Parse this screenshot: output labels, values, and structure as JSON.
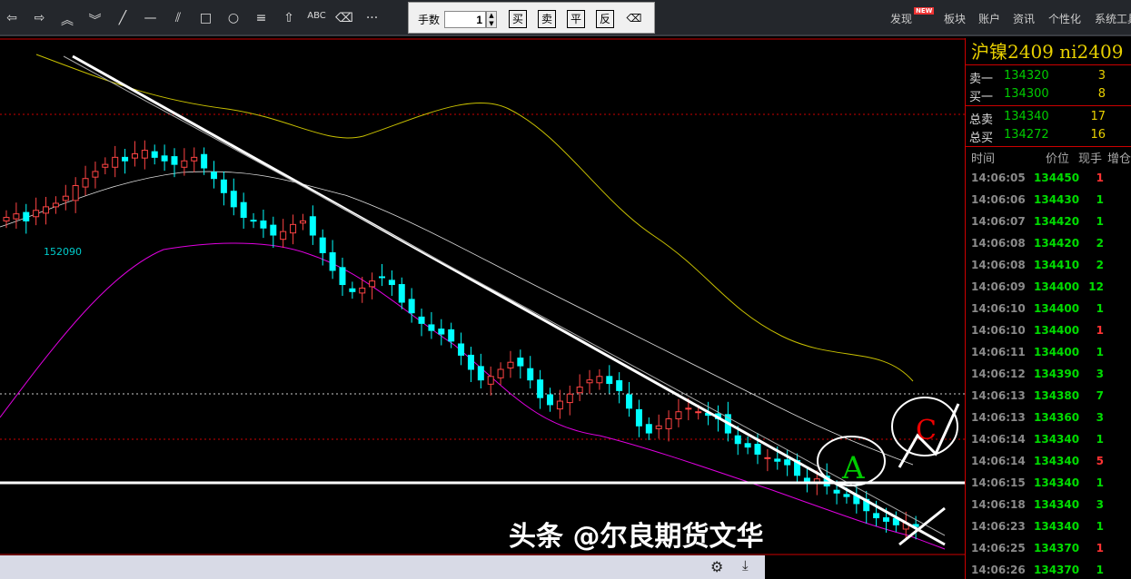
{
  "toolbar": {
    "tools": [
      {
        "icon": "arrow-left-icon",
        "glyph": "⇦"
      },
      {
        "icon": "arrow-right-icon",
        "glyph": "⇨"
      },
      {
        "icon": "double-up-icon",
        "glyph": "︽"
      },
      {
        "icon": "double-down-icon",
        "glyph": "︾"
      },
      {
        "icon": "line-icon",
        "glyph": "╱"
      },
      {
        "icon": "horizontal-line-icon",
        "glyph": "—"
      },
      {
        "icon": "parallel-line-icon",
        "glyph": "⫽"
      },
      {
        "icon": "rectangle-icon",
        "glyph": "□"
      },
      {
        "icon": "ellipse-icon",
        "glyph": "○"
      },
      {
        "icon": "fibonacci-icon",
        "glyph": "≡"
      },
      {
        "icon": "arrow-up-icon",
        "glyph": "⇧"
      },
      {
        "icon": "text-icon",
        "glyph": "ABC"
      },
      {
        "icon": "eraser-icon",
        "glyph": "⌫"
      },
      {
        "icon": "more-icon",
        "glyph": "···"
      }
    ]
  },
  "trade": {
    "qty_label": "手数",
    "qty_value": "1",
    "buy": "买",
    "sell": "卖",
    "close": "平",
    "reverse": "反"
  },
  "menu": {
    "items": [
      "发现",
      "板块",
      "账户",
      "资讯",
      "个性化",
      "系统工具"
    ],
    "new_badge": "NEW"
  },
  "quote": {
    "title": "沪镍2409  ni2409",
    "book": [
      {
        "label": "卖一",
        "price": "134320",
        "vol": "3"
      },
      {
        "label": "买一",
        "price": "134300",
        "vol": "8"
      }
    ],
    "totals": [
      {
        "label": "总卖",
        "price": "134340",
        "vol": "17"
      },
      {
        "label": "总买",
        "price": "134272",
        "vol": "16"
      }
    ],
    "headers": [
      "时间",
      "价位",
      "现手",
      "增仓"
    ],
    "ticks": [
      [
        "14:06:05",
        "134450",
        "1",
        "red"
      ],
      [
        "14:06:06",
        "134430",
        "1",
        "green"
      ],
      [
        "14:06:07",
        "134420",
        "1",
        "green"
      ],
      [
        "14:06:08",
        "134420",
        "2",
        "green"
      ],
      [
        "14:06:08",
        "134410",
        "2",
        "green"
      ],
      [
        "14:06:09",
        "134400",
        "12",
        "green"
      ],
      [
        "14:06:10",
        "134400",
        "1",
        "green"
      ],
      [
        "14:06:10",
        "134400",
        "1",
        "red"
      ],
      [
        "14:06:11",
        "134400",
        "1",
        "green"
      ],
      [
        "14:06:12",
        "134390",
        "3",
        "green"
      ],
      [
        "14:06:13",
        "134380",
        "7",
        "green"
      ],
      [
        "14:06:13",
        "134360",
        "3",
        "green"
      ],
      [
        "14:06:14",
        "134340",
        "1",
        "green"
      ],
      [
        "14:06:14",
        "134340",
        "5",
        "red"
      ],
      [
        "14:06:15",
        "134340",
        "1",
        "green"
      ],
      [
        "14:06:18",
        "134340",
        "3",
        "green"
      ],
      [
        "14:06:23",
        "134340",
        "1",
        "green"
      ],
      [
        "14:06:25",
        "134370",
        "1",
        "red"
      ],
      [
        "14:06:26",
        "134370",
        "1",
        "green"
      ]
    ]
  },
  "chart_data": {
    "type": "candlestick",
    "low_label": "152090",
    "annotations": [
      "A",
      "C"
    ],
    "closes": [
      151900,
      152000,
      151800,
      152100,
      152200,
      152300,
      152500,
      152800,
      153000,
      153200,
      153400,
      153600,
      153500,
      153700,
      153800,
      153600,
      153500,
      153400,
      153500,
      153600,
      153300,
      153000,
      152600,
      152200,
      151900,
      151800,
      151600,
      151400,
      151500,
      151700,
      151800,
      151400,
      150900,
      150400,
      150000,
      149800,
      149900,
      150100,
      150200,
      150000,
      149500,
      149200,
      148900,
      148700,
      148600,
      148400,
      148000,
      147600,
      147300,
      147400,
      147600,
      147800,
      147700,
      147300,
      146800,
      146600,
      146700,
      146900,
      147100,
      147300,
      147400,
      147200,
      147000,
      146500,
      146000,
      145800,
      146000,
      146200,
      146400,
      146500,
      146400,
      146300,
      146200,
      145800,
      145500,
      145400,
      145200,
      145100,
      145000,
      144900,
      144600,
      144400,
      144500,
      144300,
      144100,
      144000,
      143800,
      143600,
      143400,
      143300,
      143200,
      143250,
      143150
    ]
  },
  "watermark": "头条 @尔良期货文华"
}
